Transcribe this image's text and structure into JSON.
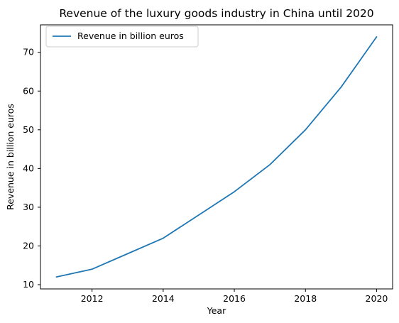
{
  "chart_data": {
    "type": "line",
    "title": "Revenue of the luxury goods industry in China until 2020",
    "xlabel": "Year",
    "ylabel": "Revenue in billion euros",
    "x": [
      2011,
      2012,
      2013,
      2014,
      2015,
      2016,
      2017,
      2018,
      2019,
      2020
    ],
    "series": [
      {
        "name": "Revenue in billion euros",
        "values": [
          12,
          14,
          18,
          22,
          28,
          34,
          41,
          50,
          61,
          74
        ]
      }
    ],
    "xlim": [
      2010.55,
      2020.45
    ],
    "ylim": [
      8.9,
      77.1
    ],
    "xticks": [
      2012,
      2014,
      2016,
      2018,
      2020
    ],
    "xtick_labels": [
      "2012",
      "2014",
      "2016",
      "2018",
      "2020"
    ],
    "yticks": [
      10,
      20,
      30,
      40,
      50,
      60,
      70
    ],
    "ytick_labels": [
      "10",
      "20",
      "30",
      "40",
      "50",
      "60",
      "70"
    ],
    "line_color": "#1f77b4",
    "grid": false,
    "legend_position": "upper-left"
  }
}
